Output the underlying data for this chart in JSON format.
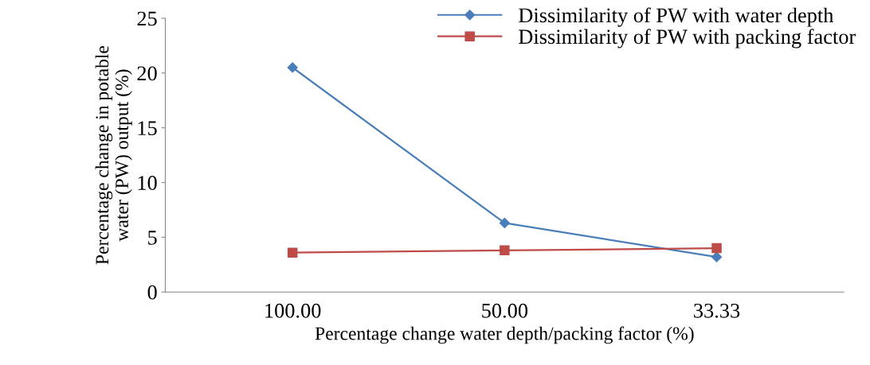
{
  "chart_data": {
    "type": "line",
    "xlabel": "Percentage change water depth/packing factor (%)",
    "ylabel": "Percentage change in potable\nwater (PW) output (%)",
    "categories": [
      "100.00",
      "50.00",
      "33.33"
    ],
    "series": [
      {
        "name": "Dissimilarity of PW with water depth",
        "color": "#4a7ebb",
        "marker": "diamond",
        "values": [
          20.5,
          6.3,
          3.2
        ]
      },
      {
        "name": "Dissimilarity of PW with packing factor",
        "color": "#be4b48",
        "marker": "square",
        "values": [
          3.6,
          3.8,
          4.0
        ]
      }
    ],
    "ylim": [
      0,
      25
    ],
    "yticks": [
      0,
      5,
      10,
      15,
      20,
      25
    ],
    "grid": false,
    "legend": "top right",
    "line_style": "solid"
  }
}
